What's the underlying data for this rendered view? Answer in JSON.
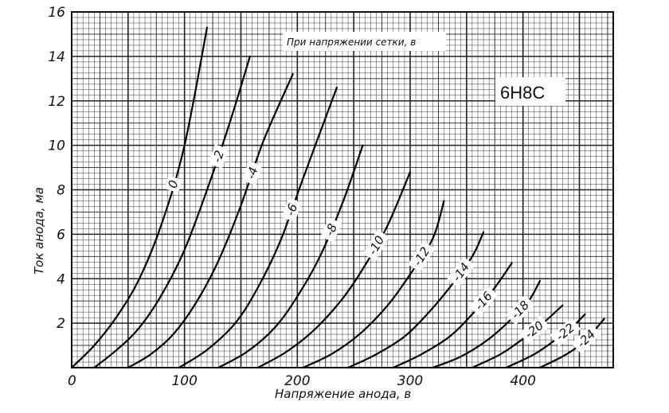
{
  "chart_data": {
    "type": "line",
    "tube": "6Н8С",
    "legend_title": "При напряжении сетки, в",
    "xlabel": "Напряжение анода, в",
    "ylabel": "Ток анода, ма",
    "xlim": [
      0,
      480
    ],
    "ylim": [
      0,
      16
    ],
    "x_ticks": [
      0,
      100,
      200,
      300,
      400
    ],
    "y_ticks": [
      2,
      4,
      6,
      8,
      10,
      12,
      14,
      16
    ],
    "grid": true,
    "series": [
      {
        "name": "0",
        "points": [
          [
            0,
            0
          ],
          [
            20,
            1
          ],
          [
            40,
            2.3
          ],
          [
            60,
            4
          ],
          [
            80,
            6.5
          ],
          [
            100,
            10
          ],
          [
            120,
            15.3
          ]
        ]
      },
      {
        "name": "-2",
        "points": [
          [
            20,
            0
          ],
          [
            40,
            0.8
          ],
          [
            60,
            1.8
          ],
          [
            80,
            3.3
          ],
          [
            100,
            5.3
          ],
          [
            120,
            8
          ],
          [
            140,
            11
          ],
          [
            158,
            14
          ]
        ]
      },
      {
        "name": "-4",
        "points": [
          [
            50,
            0
          ],
          [
            70,
            0.6
          ],
          [
            90,
            1.5
          ],
          [
            110,
            2.9
          ],
          [
            130,
            4.8
          ],
          [
            150,
            7.3
          ],
          [
            170,
            10.2
          ],
          [
            196,
            13.2
          ]
        ]
      },
      {
        "name": "-6",
        "points": [
          [
            95,
            0
          ],
          [
            120,
            0.8
          ],
          [
            145,
            2
          ],
          [
            165,
            3.6
          ],
          [
            185,
            5.7
          ],
          [
            205,
            8.5
          ],
          [
            235,
            12.6
          ]
        ]
      },
      {
        "name": "-8",
        "points": [
          [
            130,
            0
          ],
          [
            155,
            0.7
          ],
          [
            180,
            1.8
          ],
          [
            200,
            3.2
          ],
          [
            220,
            5
          ],
          [
            240,
            7.4
          ],
          [
            258,
            10
          ]
        ]
      },
      {
        "name": "-10",
        "points": [
          [
            165,
            0
          ],
          [
            190,
            0.7
          ],
          [
            215,
            1.7
          ],
          [
            240,
            3.1
          ],
          [
            260,
            4.6
          ],
          [
            280,
            6.4
          ],
          [
            300,
            8.8
          ]
        ]
      },
      {
        "name": "-12",
        "points": [
          [
            205,
            0
          ],
          [
            230,
            0.6
          ],
          [
            255,
            1.5
          ],
          [
            280,
            2.8
          ],
          [
            300,
            4.2
          ],
          [
            320,
            5.8
          ],
          [
            330,
            7.5
          ]
        ]
      },
      {
        "name": "-14",
        "points": [
          [
            245,
            0
          ],
          [
            270,
            0.6
          ],
          [
            295,
            1.4
          ],
          [
            315,
            2.4
          ],
          [
            335,
            3.6
          ],
          [
            355,
            5
          ],
          [
            365,
            6.1
          ]
        ]
      },
      {
        "name": "-16",
        "points": [
          [
            285,
            0
          ],
          [
            310,
            0.6
          ],
          [
            335,
            1.4
          ],
          [
            355,
            2.4
          ],
          [
            375,
            3.6
          ],
          [
            390,
            4.7
          ]
        ]
      },
      {
        "name": "-18",
        "points": [
          [
            320,
            0
          ],
          [
            345,
            0.5
          ],
          [
            370,
            1.3
          ],
          [
            390,
            2.2
          ],
          [
            405,
            3
          ],
          [
            415,
            3.9
          ]
        ]
      },
      {
        "name": "-20",
        "points": [
          [
            355,
            0
          ],
          [
            380,
            0.6
          ],
          [
            400,
            1.3
          ],
          [
            420,
            2.1
          ],
          [
            435,
            2.8
          ]
        ]
      },
      {
        "name": "-22",
        "points": [
          [
            385,
            0
          ],
          [
            410,
            0.6
          ],
          [
            430,
            1.3
          ],
          [
            445,
            1.9
          ],
          [
            455,
            2.4
          ]
        ]
      },
      {
        "name": "-24",
        "points": [
          [
            415,
            0
          ],
          [
            435,
            0.5
          ],
          [
            450,
            1
          ],
          [
            462,
            1.6
          ],
          [
            472,
            2.2
          ]
        ]
      }
    ]
  }
}
